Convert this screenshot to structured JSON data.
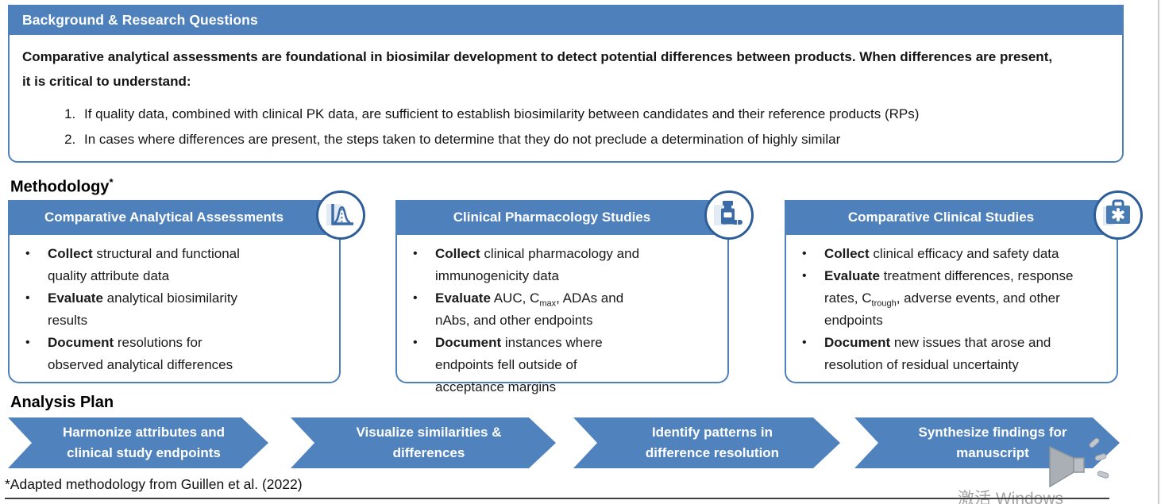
{
  "top_panel": {
    "title": "Background & Research Questions",
    "intro": "Comparative analytical assessments are foundational in biosimilar development to detect potential differences between products. When differences are present, it is critical to understand:",
    "questions": [
      "If quality data, combined with clinical PK data, are sufficient to establish biosimilarity between candidates and their reference products (RPs)",
      "In cases where differences are present, the steps taken to determine that they do not preclude a determination of highly similar"
    ]
  },
  "methodology": {
    "heading": "Methodology",
    "heading_note": "*",
    "cards": [
      {
        "title": "Comparative Analytical Assessments",
        "icon": "bell-curve-icon",
        "bullets": [
          [
            {
              "b": "Collect"
            },
            {
              "t": " structural and functional quality attribute data"
            }
          ],
          [
            {
              "b": "Evaluate"
            },
            {
              "t": " analytical biosimilarity results"
            }
          ],
          [
            {
              "b": "Document"
            },
            {
              "t": " resolutions for observed analytical differences"
            }
          ]
        ]
      },
      {
        "title": "Clinical Pharmacology Studies",
        "icon": "pill-bottle-icon",
        "bullets": [
          [
            {
              "b": "Collect"
            },
            {
              "t": " clinical pharmacology and immunogenicity data"
            }
          ],
          [
            {
              "b": "Evaluate"
            },
            {
              "t": " AUC, C"
            },
            {
              "sub": "max"
            },
            {
              "t": ", ADAs and nAbs, and other endpoints"
            }
          ],
          [
            {
              "b": "Document"
            },
            {
              "t": " instances where endpoints fell outside of acceptance margins"
            }
          ]
        ]
      },
      {
        "title": "Comparative Clinical Studies",
        "icon": "medical-bag-icon",
        "bullets": [
          [
            {
              "b": "Collect"
            },
            {
              "t": " clinical efficacy and safety data"
            }
          ],
          [
            {
              "b": "Evaluate"
            },
            {
              "t": " treatment differences, response rates, C"
            },
            {
              "sub": "trough"
            },
            {
              "t": ", adverse events, and other endpoints"
            }
          ],
          [
            {
              "b": "Document"
            },
            {
              "t": " new issues that arose and resolution of residual uncertainty"
            }
          ]
        ]
      }
    ]
  },
  "analysis_plan": {
    "heading": "Analysis Plan",
    "steps": [
      "Harmonize attributes and clinical study endpoints",
      "Visualize similarities & differences",
      "Identify patterns in difference resolution",
      "Synthesize findings for manuscript"
    ]
  },
  "footnote": "*Adapted methodology from Guillen et al. (2022)",
  "watermark": "激活 Windows",
  "colors": {
    "accent_blue": "#4e80bc",
    "arrow_blue": "#5083be",
    "circle_border_blue": "#2e5e99",
    "icon_blue": "#3a6ba6",
    "text_dark": "#141414",
    "speaker_gray": "#a9afb5"
  }
}
